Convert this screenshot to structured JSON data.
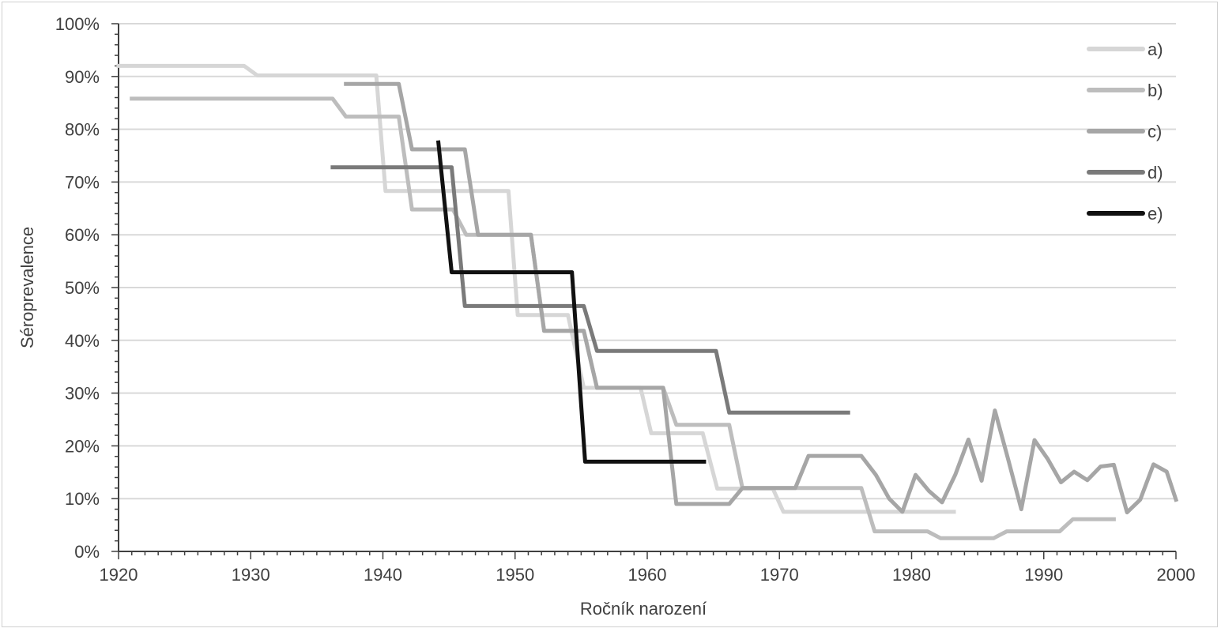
{
  "chart_data": {
    "type": "line",
    "xlabel": "Ročník narození",
    "ylabel": "Séroprevalence",
    "xlim": [
      1920,
      2000
    ],
    "ylim": [
      0,
      100
    ],
    "x_ticks": [
      1920,
      1930,
      1940,
      1950,
      1960,
      1970,
      1980,
      1990,
      2000
    ],
    "y_ticks": [
      0,
      10,
      20,
      30,
      40,
      50,
      60,
      70,
      80,
      90,
      100
    ],
    "y_tick_labels": [
      "0%",
      "10%",
      "20%",
      "30%",
      "40%",
      "50%",
      "60%",
      "70%",
      "80%",
      "90%",
      "100%"
    ],
    "grid": "horizontal",
    "legend_position": "top-right",
    "series": [
      {
        "name": "a)",
        "color": "#d6d6d6",
        "width": 5,
        "points": [
          [
            1920,
            92
          ],
          [
            1929.5,
            92
          ],
          [
            1930.5,
            90.2
          ],
          [
            1939.5,
            90.2
          ],
          [
            1940.2,
            68.3
          ],
          [
            1949.5,
            68.3
          ],
          [
            1950.2,
            44.8
          ],
          [
            1954,
            44.8
          ],
          [
            1955.2,
            31
          ],
          [
            1959.5,
            31
          ],
          [
            1960.3,
            22.4
          ],
          [
            1964.2,
            22.4
          ],
          [
            1965.3,
            11.9
          ],
          [
            1969.5,
            11.9
          ],
          [
            1970.3,
            7.5
          ],
          [
            1983.2,
            7.5
          ]
        ]
      },
      {
        "name": "b)",
        "color": "#bdbdbd",
        "width": 5,
        "points": [
          [
            1921,
            85.8
          ],
          [
            1936.2,
            85.8
          ],
          [
            1937.2,
            82.4
          ],
          [
            1941.2,
            82.4
          ],
          [
            1942.2,
            64.8
          ],
          [
            1945.3,
            64.8
          ],
          [
            1946.3,
            60
          ],
          [
            1951.2,
            60
          ],
          [
            1952.2,
            41.8
          ],
          [
            1955.2,
            41.8
          ],
          [
            1956.2,
            31
          ],
          [
            1961.2,
            31
          ],
          [
            1962.2,
            24
          ],
          [
            1966.2,
            24
          ],
          [
            1967.2,
            12
          ],
          [
            1971.2,
            12
          ],
          [
            1972.2,
            12
          ],
          [
            1976.2,
            12
          ],
          [
            1977.2,
            3.8
          ],
          [
            1981.2,
            3.8
          ],
          [
            1982.2,
            2.5
          ],
          [
            1986.2,
            2.5
          ],
          [
            1987.2,
            3.8
          ],
          [
            1991.2,
            3.8
          ],
          [
            1992.2,
            6.1
          ],
          [
            1995.3,
            6.1
          ]
        ]
      },
      {
        "name": "c)",
        "color": "#a6a6a6",
        "width": 5,
        "points": [
          [
            1937.2,
            88.6
          ],
          [
            1941.2,
            88.6
          ],
          [
            1942.2,
            76.2
          ],
          [
            1946.2,
            76.2
          ],
          [
            1947.2,
            60
          ],
          [
            1951.2,
            60
          ],
          [
            1952.2,
            41.8
          ],
          [
            1955.2,
            41.8
          ],
          [
            1956.2,
            31
          ],
          [
            1961.2,
            31
          ],
          [
            1962.2,
            9
          ],
          [
            1966.2,
            9
          ],
          [
            1967.2,
            12
          ],
          [
            1971.2,
            12
          ],
          [
            1972.2,
            18.1
          ],
          [
            1976.2,
            18.1
          ],
          [
            1977.3,
            14.5
          ],
          [
            1978.3,
            10
          ],
          [
            1979.3,
            7.5
          ],
          [
            1980.3,
            14.5
          ],
          [
            1981.3,
            11.5
          ],
          [
            1982.3,
            9.3
          ],
          [
            1983.3,
            14.5
          ],
          [
            1984.3,
            21.2
          ],
          [
            1985.3,
            13.4
          ],
          [
            1986.3,
            26.7
          ],
          [
            1987.3,
            17.5
          ],
          [
            1988.3,
            8
          ],
          [
            1989.3,
            21.1
          ],
          [
            1990.3,
            17.5
          ],
          [
            1991.3,
            13.1
          ],
          [
            1992.3,
            15.1
          ],
          [
            1993.3,
            13.5
          ],
          [
            1994.3,
            16.1
          ],
          [
            1995.3,
            16.4
          ],
          [
            1996.3,
            7.4
          ],
          [
            1997.3,
            9.8
          ],
          [
            1998.3,
            16.5
          ],
          [
            1999.3,
            15.1
          ],
          [
            2000,
            9.8
          ]
        ]
      },
      {
        "name": "d)",
        "color": "#7a7a7a",
        "width": 5,
        "points": [
          [
            1936.2,
            72.8
          ],
          [
            1945.2,
            72.8
          ],
          [
            1946.2,
            46.5
          ],
          [
            1955.2,
            46.5
          ],
          [
            1956.2,
            38
          ],
          [
            1965.2,
            38
          ],
          [
            1966.2,
            26.3
          ],
          [
            1975.2,
            26.3
          ]
        ]
      },
      {
        "name": "e)",
        "color": "#111111",
        "width": 5,
        "points": [
          [
            1944.2,
            77.5
          ],
          [
            1945.2,
            52.9
          ],
          [
            1954.3,
            52.9
          ],
          [
            1955.3,
            17
          ],
          [
            1964.3,
            17
          ]
        ]
      }
    ]
  }
}
